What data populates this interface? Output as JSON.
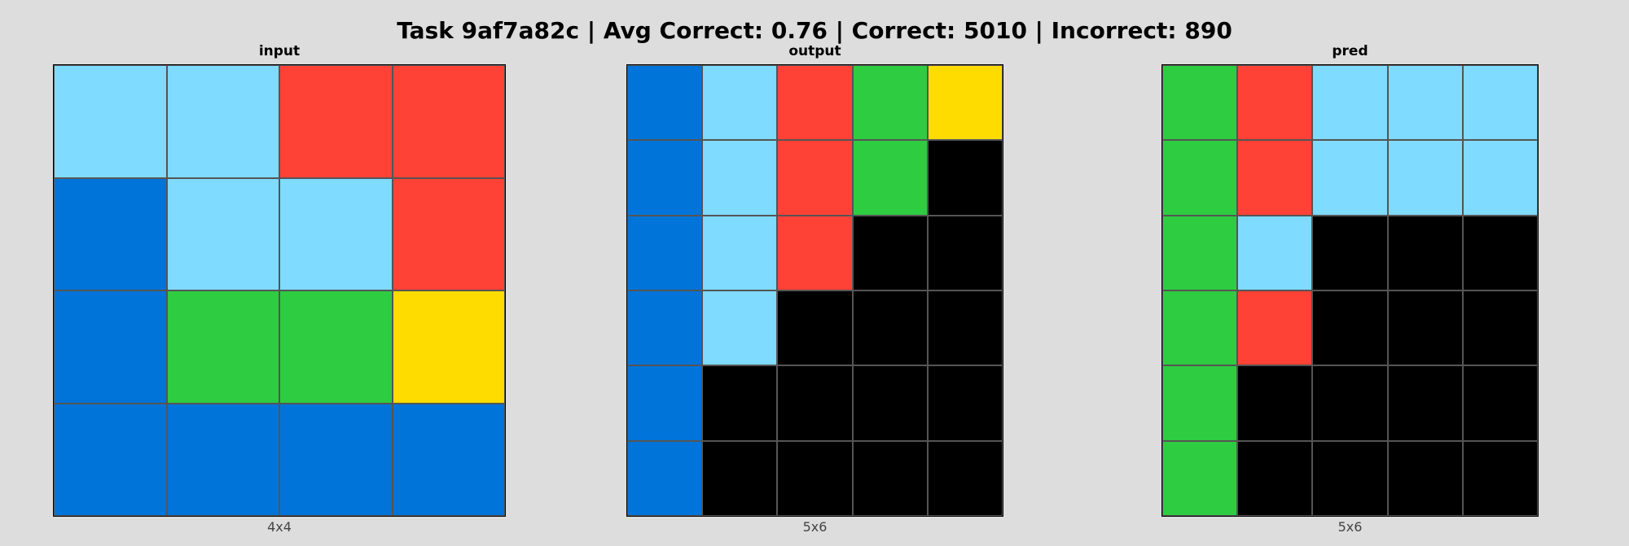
{
  "title": "Task 9af7a82c | Avg Correct: 0.76 | Correct: 5010 | Incorrect: 890",
  "palette": {
    "B": "#0074d9",
    "L": "#7fdbff",
    "R": "#ff4136",
    "G": "#2ecc40",
    "Y": "#ffdc00",
    "K": "#000000"
  },
  "panels": [
    {
      "id": "input",
      "title": "input",
      "caption": "4x4",
      "rows": [
        [
          "L",
          "L",
          "R",
          "R"
        ],
        [
          "B",
          "L",
          "L",
          "R"
        ],
        [
          "B",
          "G",
          "G",
          "Y"
        ],
        [
          "B",
          "B",
          "B",
          "B"
        ]
      ]
    },
    {
      "id": "output",
      "title": "output",
      "caption": "5x6",
      "rows": [
        [
          "B",
          "L",
          "R",
          "G",
          "Y"
        ],
        [
          "B",
          "L",
          "R",
          "G",
          "K"
        ],
        [
          "B",
          "L",
          "R",
          "K",
          "K"
        ],
        [
          "B",
          "L",
          "K",
          "K",
          "K"
        ],
        [
          "B",
          "K",
          "K",
          "K",
          "K"
        ],
        [
          "B",
          "K",
          "K",
          "K",
          "K"
        ]
      ]
    },
    {
      "id": "pred",
      "title": "pred",
      "caption": "5x6",
      "rows": [
        [
          "G",
          "R",
          "L",
          "L",
          "L"
        ],
        [
          "G",
          "R",
          "L",
          "L",
          "L"
        ],
        [
          "G",
          "L",
          "K",
          "K",
          "K"
        ],
        [
          "G",
          "R",
          "K",
          "K",
          "K"
        ],
        [
          "G",
          "K",
          "K",
          "K",
          "K"
        ],
        [
          "G",
          "K",
          "K",
          "K",
          "K"
        ]
      ]
    }
  ]
}
